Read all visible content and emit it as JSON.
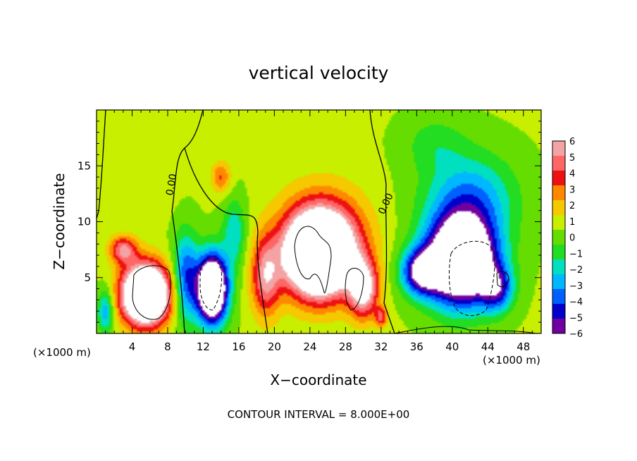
{
  "chart_data": {
    "type": "heatmap",
    "title": "vertical velocity",
    "xlabel": "X−coordinate",
    "ylabel": "Z−coordinate",
    "x_unit_label_left": "(×1000 m)",
    "x_unit_label_right": "(×1000 m)",
    "xlim": [
      0,
      50
    ],
    "ylim": [
      0,
      20
    ],
    "x_ticks": [
      4,
      8,
      12,
      16,
      20,
      24,
      28,
      32,
      36,
      40,
      44,
      48
    ],
    "x_tick_labels": [
      "4",
      "8",
      "12",
      "16",
      "20",
      "24",
      "28",
      "32",
      "36",
      "40",
      "44",
      "48"
    ],
    "y_ticks": [
      5,
      10,
      15
    ],
    "y_tick_labels": [
      "5",
      "10",
      "15"
    ],
    "colorbar": {
      "levels": [
        6,
        5,
        4,
        3,
        2,
        1,
        0,
        -1,
        -2,
        -3,
        -4,
        -5,
        -6
      ],
      "labels": [
        "6",
        "5",
        "4",
        "3",
        "2",
        "1",
        "0",
        "−1",
        "−2",
        "−3",
        "−4",
        "−5",
        "−6"
      ],
      "colors": [
        "#f3a3a3",
        "#ff6666",
        "#ee1111",
        "#ff8800",
        "#f5c800",
        "#c8ee00",
        "#66dd00",
        "#22dd22",
        "#00e0c0",
        "#00b8ff",
        "#0060ff",
        "#0000cc",
        "#7000a0"
      ]
    },
    "contour_labels": [
      "0.00",
      "0.00"
    ],
    "footer": "CONTOUR INTERVAL = 8.000E+00",
    "field": {
      "background": 0.6,
      "features": [
        {
          "x": 5.5,
          "z": 3.5,
          "amp": 15,
          "sx": 2.6,
          "sz": 2.6
        },
        {
          "x": 3.0,
          "z": 7.5,
          "amp": 5,
          "sx": 1.5,
          "sz": 1.2
        },
        {
          "x": 1.0,
          "z": 2.0,
          "amp": -4,
          "sx": 0.9,
          "sz": 2.0
        },
        {
          "x": 10.0,
          "z": 5.0,
          "amp": -5,
          "sx": 1.4,
          "sz": 4.0
        },
        {
          "x": 13.0,
          "z": 4.0,
          "amp": -14,
          "sx": 1.7,
          "sz": 3.0
        },
        {
          "x": 15.5,
          "z": 9.0,
          "amp": -3,
          "sx": 1.3,
          "sz": 3.0
        },
        {
          "x": 14.0,
          "z": 14.0,
          "amp": 3,
          "sx": 1.1,
          "sz": 1.4
        },
        {
          "x": 19.0,
          "z": 5.0,
          "amp": 5,
          "sx": 1.6,
          "sz": 3.5
        },
        {
          "x": 25.0,
          "z": 7.0,
          "amp": 14,
          "sx": 3.6,
          "sz": 3.5
        },
        {
          "x": 25.5,
          "z": 8.5,
          "amp": 4,
          "sx": 5.0,
          "sz": 4.5
        },
        {
          "x": 30.0,
          "z": 4.0,
          "amp": 7,
          "sx": 1.6,
          "sz": 2.5
        },
        {
          "x": 32.0,
          "z": 1.5,
          "amp": 4,
          "sx": 0.7,
          "sz": 0.9
        },
        {
          "x": 36.5,
          "z": 5.5,
          "amp": -7,
          "sx": 2.2,
          "sz": 2.0
        },
        {
          "x": 41.0,
          "z": 6.5,
          "amp": -14,
          "sx": 3.8,
          "sz": 3.8
        },
        {
          "x": 42.0,
          "z": 12.0,
          "amp": -4,
          "sx": 5.0,
          "sz": 4.0
        },
        {
          "x": 45.0,
          "z": 4.0,
          "amp": -5,
          "sx": 1.8,
          "sz": 2.0
        },
        {
          "x": 38.0,
          "z": 17.0,
          "amp": -1.5,
          "sx": 3.5,
          "sz": 2.5
        },
        {
          "x": 5.0,
          "z": 15.0,
          "amp": 0.8,
          "sx": 4.0,
          "sz": 4.0
        }
      ]
    }
  }
}
